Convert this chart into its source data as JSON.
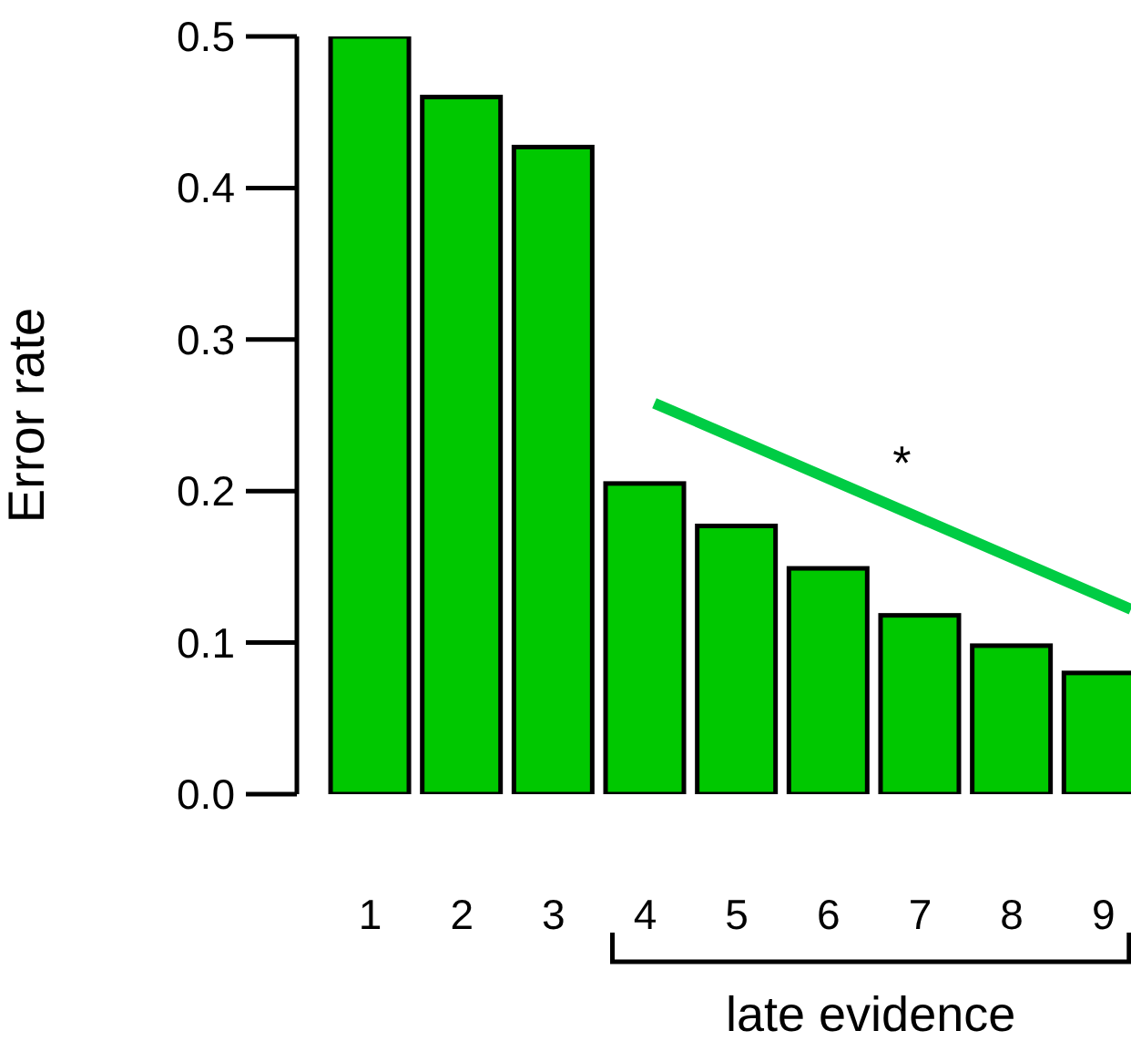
{
  "chart_data": {
    "type": "bar",
    "ylabel": "Error rate",
    "x": [
      1,
      2,
      3,
      4,
      5,
      6,
      7,
      8,
      9
    ],
    "values": [
      0.5,
      0.46,
      0.427,
      0.205,
      0.177,
      0.149,
      0.118,
      0.098,
      0.08
    ],
    "color": "#00c800",
    "series": [
      {
        "type": "line",
        "x": [
          4.1,
          9.3
        ],
        "values": [
          0.258,
          0.122
        ],
        "color": "#00cc44"
      }
    ],
    "xlim": [
      0.2,
      9.3
    ],
    "xticks": [
      1,
      2,
      3,
      4,
      5,
      6,
      7,
      8,
      9
    ],
    "ylim": [
      0,
      0.5
    ],
    "yticks": [
      {
        "value": 0,
        "label": "0.0"
      },
      {
        "value": 0.1,
        "label": "0.1"
      },
      {
        "value": 0.2,
        "label": "0.2"
      },
      {
        "value": 0.3,
        "label": "0.3"
      },
      {
        "value": 0.4,
        "label": "0.4"
      },
      {
        "value": 0.5,
        "label": "0.5"
      }
    ],
    "annotations": [
      "*",
      "late evidence"
    ],
    "grid": false,
    "legend": false
  }
}
